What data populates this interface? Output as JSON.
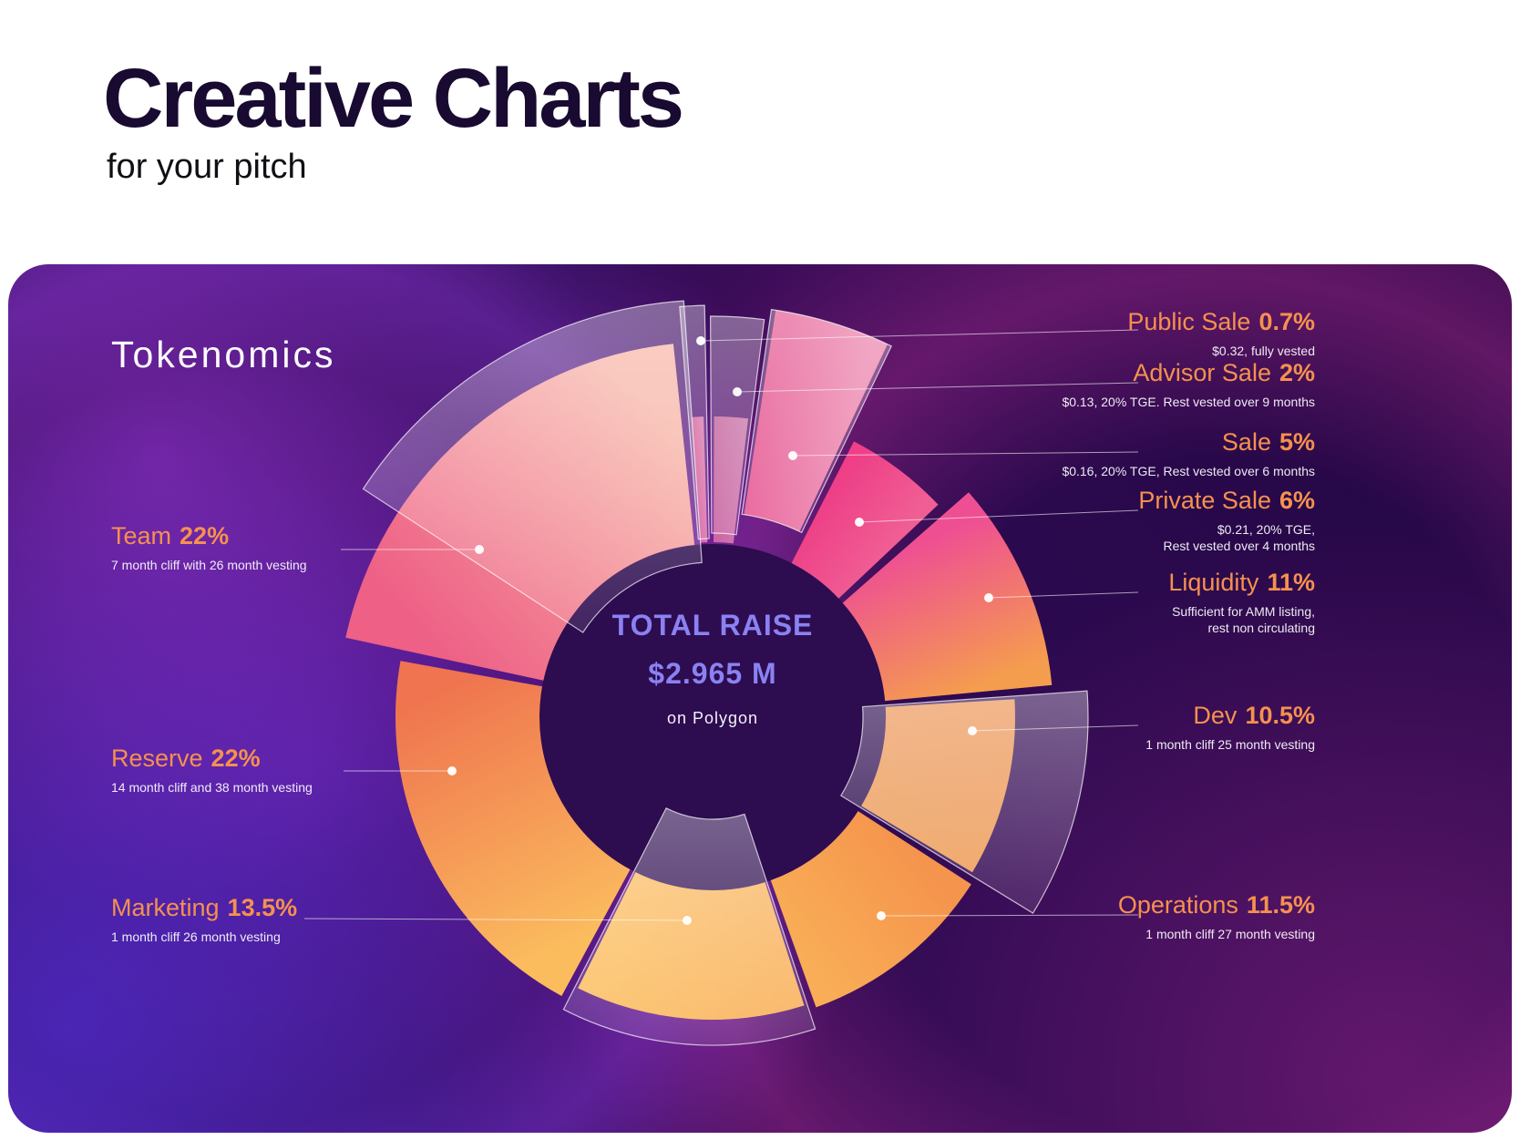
{
  "page": {
    "title": "Creative Charts",
    "subtitle": "for your pitch"
  },
  "card": {
    "title": "Tokenomics",
    "center": {
      "line1": "TOTAL RAISE",
      "line2": "$2.965 M",
      "line3": "on Polygon"
    }
  },
  "colors": {
    "card_background": "#2e0a52",
    "legend_orange": "#f5914e",
    "center_periwinkle": "#8a82f2",
    "note_white": "#f8f6fb"
  },
  "chart_data": {
    "type": "pie",
    "title": "Tokenomics",
    "center_label": "TOTAL RAISE $2.965 M on Polygon",
    "legend_position": "left-right callouts",
    "segments": [
      {
        "name": "Public Sale",
        "pct": "0.7%",
        "value": 0.7,
        "note": "$0.32, fully vested",
        "style": "glass",
        "colors": [
          "#f472a2",
          "#f78fb8"
        ]
      },
      {
        "name": "Advisor Sale",
        "pct": "2%",
        "value": 2,
        "note": "$0.13, 20% TGE. Rest vested over 9 months",
        "style": "glass",
        "colors": [
          "#f07fa8",
          "#f79bbd"
        ]
      },
      {
        "name": "Sale",
        "pct": "5%",
        "value": 5,
        "note": "$0.16, 20% TGE, Rest vested over 6 months",
        "style": "glass-pink",
        "colors": [
          "#f0538f",
          "#f787ae"
        ]
      },
      {
        "name": "Private Sale",
        "pct": "6%",
        "value": 6,
        "note": "$0.21, 20% TGE,\nRest vested over 4 months",
        "style": "solid",
        "colors": [
          "#ee3f87",
          "#f05e94"
        ]
      },
      {
        "name": "Liquidity",
        "pct": "11%",
        "value": 11,
        "note": "Sufficient for AMM listing,\nrest non circulating",
        "style": "solid",
        "colors": [
          "#ee4f93",
          "#f59d4e"
        ]
      },
      {
        "name": "Dev",
        "pct": "10.5%",
        "value": 10.5,
        "note": "1 month cliff 25 month vesting",
        "style": "glass",
        "colors": [
          "#f5974f",
          "#f6a356"
        ]
      },
      {
        "name": "Operations",
        "pct": "11.5%",
        "value": 11.5,
        "note": "1 month cliff 27 month vesting",
        "style": "solid",
        "colors": [
          "#f5944d",
          "#f9ad56"
        ]
      },
      {
        "name": "Marketing",
        "pct": "13.5%",
        "value": 13.5,
        "note": "1 month cliff 26 month vesting",
        "style": "glass",
        "colors": [
          "#f9b058",
          "#fbbd5f"
        ]
      },
      {
        "name": "Reserve",
        "pct": "22%",
        "value": 22,
        "note": "14 month cliff and 38 month vesting",
        "style": "solid",
        "colors": [
          "#fbbc5e",
          "#ef744f"
        ]
      },
      {
        "name": "Team",
        "pct": "22%",
        "value": 22,
        "note": "7 month cliff with 26 month vesting",
        "style": "solid-glass",
        "colors": [
          "#ee6086",
          "#f7b2a4"
        ]
      }
    ]
  }
}
